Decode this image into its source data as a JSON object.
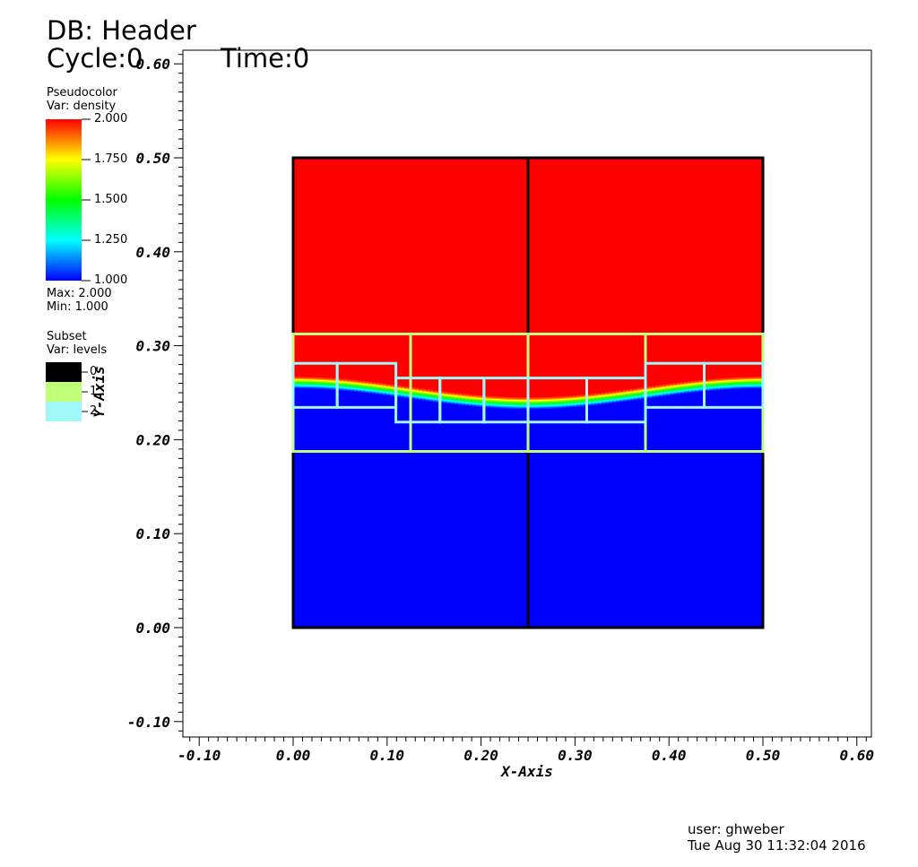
{
  "header": {
    "db": "DB: Header",
    "cycle": "Cycle:0",
    "time": "Time:0"
  },
  "pseudocolor_legend": {
    "title": "Pseudocolor",
    "var": "Var: density",
    "labels": [
      "2.000",
      "1.750",
      "1.500",
      "1.250",
      "1.000"
    ],
    "max": "Max:  2.000",
    "min": "Min:  1.000",
    "colormap": [
      "#ff0000",
      "#ffff00",
      "#00ff00",
      "#00ffff",
      "#0000ff"
    ]
  },
  "subset_legend": {
    "title": "Subset",
    "var": "Var: levels",
    "labels": [
      "0",
      "1",
      "2"
    ],
    "colors": [
      "#000000",
      "#c0ff78",
      "#a0f8f8"
    ]
  },
  "footer": {
    "user": "user: ghweber",
    "date": "Tue Aug 30 11:32:04 2016"
  },
  "chart_data": {
    "type": "heatmap",
    "title": "",
    "xlabel": "X-Axis",
    "ylabel": "Y-Axis",
    "xlim": [
      -0.12,
      0.61
    ],
    "ylim": [
      -0.12,
      0.61
    ],
    "xticks": [
      -0.1,
      0.0,
      0.1,
      0.2,
      0.3,
      0.4,
      0.5,
      0.6
    ],
    "yticks": [
      -0.1,
      0.0,
      0.1,
      0.2,
      0.3,
      0.4,
      0.5,
      0.6
    ],
    "xtick_labels": [
      "-0.10",
      "0.00",
      "0.10",
      "0.20",
      "0.30",
      "0.40",
      "0.50",
      "0.60"
    ],
    "ytick_labels": [
      "-0.10",
      "0.00",
      "0.10",
      "0.20",
      "0.30",
      "0.40",
      "0.50",
      "0.60"
    ],
    "domain": {
      "x": [
        0.0,
        0.5
      ],
      "y": [
        0.0,
        0.5
      ]
    },
    "field": {
      "name": "density",
      "min": 1.0,
      "max": 2.0,
      "interface_center": 0.25,
      "interface_amplitude": 0.011,
      "interface_wavelength": 0.5,
      "upper_value": 2.0,
      "lower_value": 1.0
    },
    "patches": [
      {
        "level": 0,
        "x": [
          0.0,
          0.25
        ],
        "y": [
          0.0,
          0.5
        ]
      },
      {
        "level": 0,
        "x": [
          0.25,
          0.5
        ],
        "y": [
          0.0,
          0.5
        ]
      },
      {
        "level": 1,
        "x": [
          0.0,
          0.125
        ],
        "y": [
          0.1875,
          0.3125
        ]
      },
      {
        "level": 1,
        "x": [
          0.125,
          0.25
        ],
        "y": [
          0.1875,
          0.3125
        ]
      },
      {
        "level": 1,
        "x": [
          0.25,
          0.375
        ],
        "y": [
          0.1875,
          0.3125
        ]
      },
      {
        "level": 1,
        "x": [
          0.375,
          0.5
        ],
        "y": [
          0.1875,
          0.3125
        ]
      },
      {
        "level": 2,
        "x": [
          0.0,
          0.046875
        ],
        "y": [
          0.234375,
          0.28125
        ]
      },
      {
        "level": 2,
        "x": [
          0.046875,
          0.109375
        ],
        "y": [
          0.234375,
          0.28125
        ]
      },
      {
        "level": 2,
        "x": [
          0.109375,
          0.15625
        ],
        "y": [
          0.21875,
          0.265625
        ]
      },
      {
        "level": 2,
        "x": [
          0.15625,
          0.203125
        ],
        "y": [
          0.21875,
          0.265625
        ]
      },
      {
        "level": 2,
        "x": [
          0.203125,
          0.25
        ],
        "y": [
          0.21875,
          0.265625
        ]
      },
      {
        "level": 2,
        "x": [
          0.25,
          0.3125
        ],
        "y": [
          0.21875,
          0.265625
        ]
      },
      {
        "level": 2,
        "x": [
          0.3125,
          0.375
        ],
        "y": [
          0.21875,
          0.265625
        ]
      },
      {
        "level": 2,
        "x": [
          0.375,
          0.4375
        ],
        "y": [
          0.234375,
          0.28125
        ]
      },
      {
        "level": 2,
        "x": [
          0.4375,
          0.5
        ],
        "y": [
          0.234375,
          0.28125
        ]
      }
    ]
  }
}
